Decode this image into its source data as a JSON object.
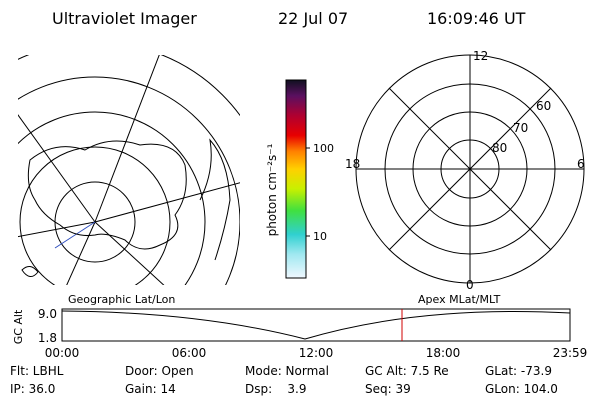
{
  "header": {
    "title": "Ultraviolet Imager",
    "date": "22 Jul 07",
    "time": "16:09:46 UT"
  },
  "colorbar": {
    "label": "photon cm⁻²s⁻¹",
    "ticks": [
      "100",
      "10"
    ]
  },
  "polar": {
    "mlt": [
      "12",
      "18",
      "6",
      "0"
    ],
    "mlat": [
      "60",
      "70",
      "80"
    ]
  },
  "strip": {
    "ylabel": "GC Alt",
    "yticks": [
      "9.0",
      "1.8"
    ],
    "left_label": "Geographic Lat/Lon",
    "right_label": "Apex MLat/MLT",
    "xticks": [
      "00:00",
      "06:00",
      "12:00",
      "18:00",
      "23:59"
    ]
  },
  "info": {
    "rows": [
      [
        "Flt: LBHL",
        "Door: Open",
        "Mode: Normal",
        "GC Alt: 7.5 Re",
        "GLat: -73.9"
      ],
      [
        "IP: 36.0",
        "Gain: 14",
        "Dsp:    3.9",
        "Seq: 39",
        "GLon: 104.0"
      ]
    ]
  }
}
